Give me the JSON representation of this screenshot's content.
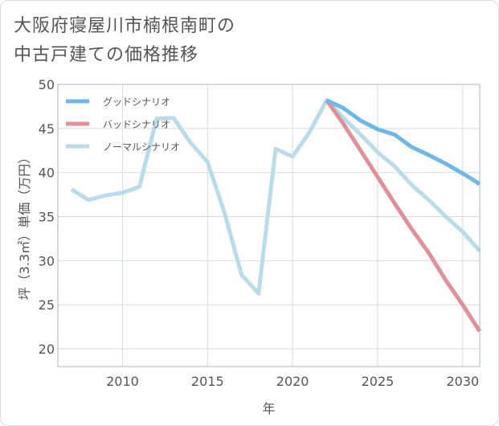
{
  "title_line1": "大阪府寝屋川市楠根南町の",
  "title_line2": "中古戸建ての価格推移",
  "chart_data": {
    "type": "line",
    "xlabel": "年",
    "ylabel": "坪（3.3㎡）単価（万円）",
    "xlim": [
      2006.2,
      2031
    ],
    "ylim": [
      18,
      50
    ],
    "xticks": [
      2010,
      2015,
      2020,
      2025,
      2030
    ],
    "yticks": [
      20,
      25,
      30,
      35,
      40,
      45,
      50
    ],
    "grid": true,
    "legend_position": "top-left",
    "series": [
      {
        "name": "グッドシナリオ",
        "color": "#6cb8ea",
        "x": [
          2022,
          2023,
          2024,
          2025,
          2026,
          2027,
          2028,
          2029,
          2030,
          2031
        ],
        "y": [
          48.2,
          47.3,
          45.9,
          44.9,
          44.3,
          42.9,
          42.0,
          41.0,
          39.9,
          38.7
        ]
      },
      {
        "name": "バッドシナリオ",
        "color": "#e38f99",
        "x": [
          2022,
          2023,
          2024,
          2025,
          2026,
          2027,
          2028,
          2029,
          2030,
          2031
        ],
        "y": [
          48.2,
          45.5,
          42.5,
          39.5,
          36.5,
          33.6,
          30.9,
          27.8,
          25.0,
          22.0
        ]
      },
      {
        "name": "ノーマルシナリオ",
        "color": "#b8dce9",
        "x": [
          2007,
          2008,
          2009,
          2010,
          2011,
          2012,
          2013,
          2014,
          2015,
          2016,
          2017,
          2018,
          2019,
          2020,
          2021,
          2022,
          2023,
          2024,
          2025,
          2026,
          2027,
          2028,
          2029,
          2030,
          2031
        ],
        "y": [
          38.1,
          36.9,
          37.4,
          37.7,
          38.4,
          46.1,
          46.2,
          43.4,
          41.2,
          35.4,
          28.4,
          26.3,
          42.7,
          41.8,
          44.6,
          48.2,
          46.2,
          44.3,
          42.3,
          40.7,
          38.6,
          36.9,
          35.0,
          33.3,
          31.1
        ]
      }
    ]
  }
}
